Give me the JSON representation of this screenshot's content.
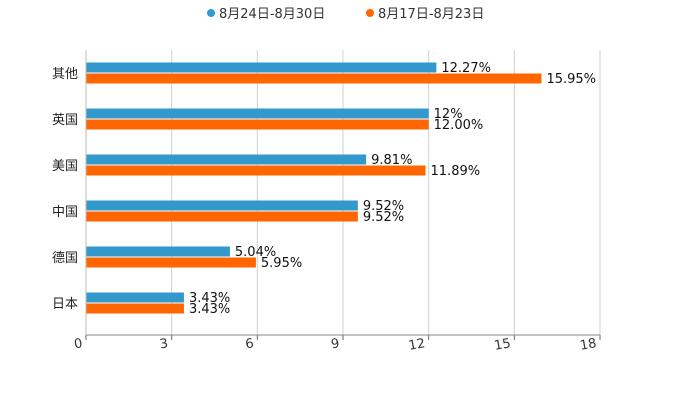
{
  "chart_data": {
    "type": "bar",
    "orientation": "horizontal",
    "categories": [
      "其他",
      "英国",
      "美国",
      "中国",
      "德国",
      "日本"
    ],
    "series": [
      {
        "name": "8月24日-8月30日",
        "color": "#3399cc",
        "values": [
          12.27,
          12,
          9.81,
          9.52,
          5.04,
          3.43
        ],
        "labels": [
          "12.27%",
          "12%",
          "9.81%",
          "9.52%",
          "5.04%",
          "3.43%"
        ]
      },
      {
        "name": "8月17日-8月23日",
        "color": "#ff6600",
        "values": [
          15.95,
          12.0,
          11.89,
          9.52,
          5.95,
          3.43
        ],
        "labels": [
          "15.95%",
          "12.00%",
          "11.89%",
          "9.52%",
          "5.95%",
          "3.43%"
        ]
      }
    ],
    "xlim": [
      0,
      18
    ],
    "xticks": [
      0,
      3,
      6,
      9,
      12,
      15,
      18
    ],
    "tick_labels": [
      "0",
      "3",
      "6",
      "9",
      "12",
      "15",
      "18"
    ],
    "grid": true,
    "legend_position": "top-center",
    "title": "",
    "xlabel": "",
    "ylabel": ""
  }
}
